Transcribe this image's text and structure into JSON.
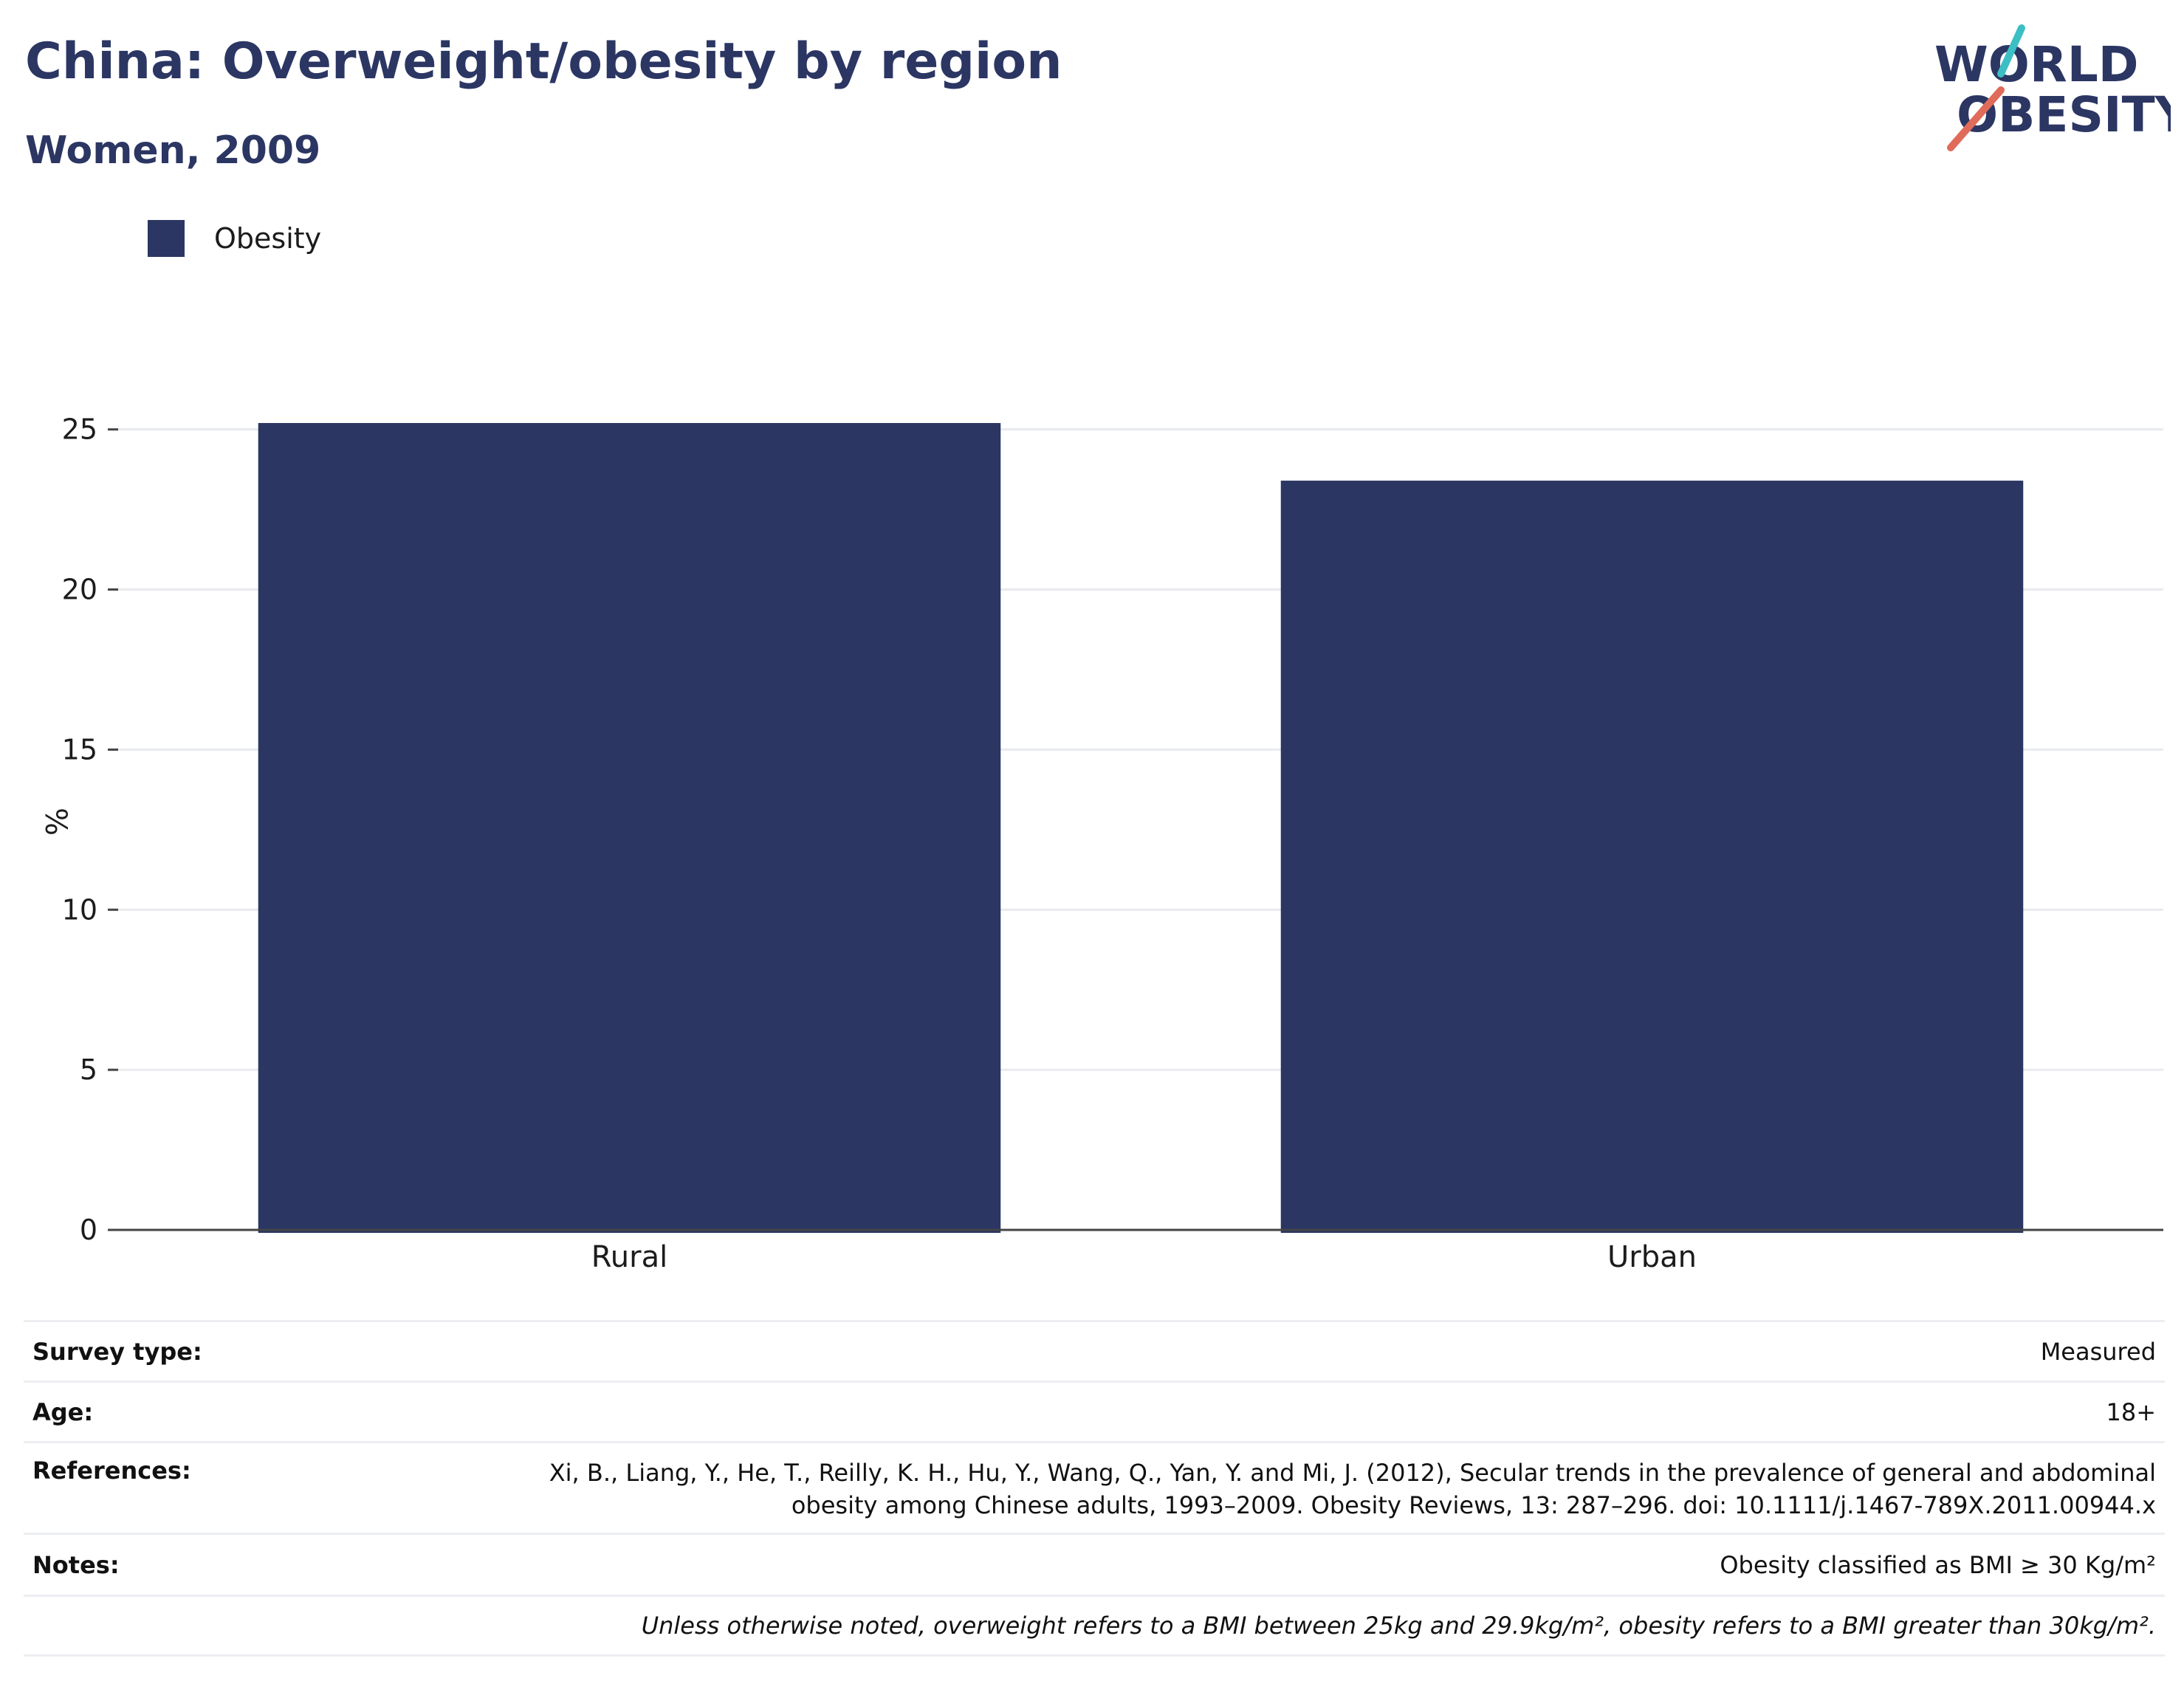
{
  "title": "China: Overweight/obesity by region",
  "subtitle": "Women, 2009",
  "logo": {
    "line1": "WORLD",
    "line2": "OBESITY",
    "accent_teal": "#3bbfc4",
    "accent_coral": "#e06b5a"
  },
  "colors": {
    "bar": "#2b3663",
    "grid": "#e8eaee",
    "axis": "#444444"
  },
  "chart_data": {
    "type": "bar",
    "categories": [
      "Rural",
      "Urban"
    ],
    "series": [
      {
        "name": "Obesity",
        "values": [
          25.2,
          23.4
        ]
      }
    ],
    "ylabel": "%",
    "xlabel": "",
    "ylim": [
      0,
      25.5
    ],
    "yticks": [
      0,
      5,
      10,
      15,
      20,
      25
    ],
    "legend": "top-left",
    "grid": true
  },
  "info": {
    "survey_type_label": "Survey type:",
    "survey_type_value": "Measured",
    "age_label": "Age:",
    "age_value": "18+",
    "references_label": "References:",
    "references_line1": "Xi, B., Liang, Y., He, T., Reilly, K. H., Hu, Y., Wang, Q., Yan, Y. and Mi, J. (2012), Secular trends in the prevalence of general and abdominal",
    "references_line2": "obesity among Chinese adults, 1993–2009. Obesity Reviews, 13: 287–296. doi: 10.1111/j.1467-789X.2011.00944.x",
    "notes_label": "Notes:",
    "notes_value": "Obesity classified as BMI ≥ 30 Kg/m²",
    "footnote": "Unless otherwise noted, overweight refers to a BMI between 25kg and 29.9kg/m², obesity refers to a BMI greater than 30kg/m²."
  }
}
